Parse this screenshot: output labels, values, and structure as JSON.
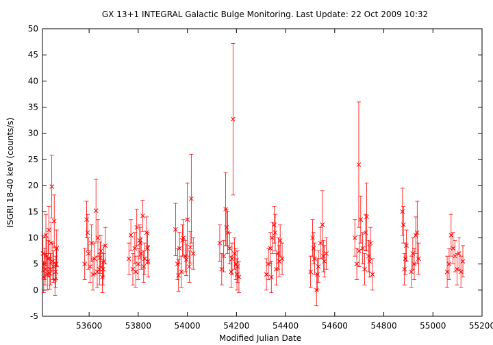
{
  "chart_data": {
    "type": "scatter",
    "title": "GX 13+1   INTEGRAL Galactic Bulge Monitoring.  Last Update: 22 Oct 2009 10:32",
    "xlabel": "Modified Julian Date",
    "ylabel": "ISGRI 18-40 keV (counts/s)",
    "xlim": [
      53410,
      55200
    ],
    "ylim": [
      -5,
      50
    ],
    "xticks": [
      "53600",
      "53800",
      "54000",
      "54200",
      "54400",
      "54600",
      "54800",
      "55000",
      "55200"
    ],
    "yticks": [
      "-5",
      "0",
      "5",
      "10",
      "15",
      "20",
      "25",
      "30",
      "35",
      "40",
      "45",
      "50"
    ],
    "grid": false,
    "legend": "none",
    "marker": "cross (x) with vertical error bars",
    "color": "#ff0000",
    "series": [
      {
        "x": [
          53412,
          53418,
          53424,
          53430,
          53436,
          53442,
          53448,
          53452,
          53458,
          53464,
          53468,
          53415,
          53427,
          53445,
          53455,
          53461,
          53421,
          53433,
          53440,
          53466,
          53582,
          53590,
          53597,
          53604,
          53610,
          53616,
          53622,
          53628,
          53636,
          53642,
          53648,
          53654,
          53660,
          53666,
          53594,
          53633,
          53645,
          53657,
          53762,
          53770,
          53778,
          53786,
          53794,
          53800,
          53806,
          53812,
          53818,
          53826,
          53834,
          53840,
          53790,
          53808,
          53822,
          53838,
          53952,
          53960,
          53968,
          53976,
          53984,
          53992,
          54000,
          54008,
          54016,
          54024,
          53964,
          53980,
          53996,
          54012,
          54132,
          54140,
          54148,
          54156,
          54164,
          54172,
          54178,
          54186,
          54192,
          54198,
          54204,
          54210,
          54160,
          54182,
          54202,
          54322,
          54330,
          54338,
          54346,
          54354,
          54362,
          54370,
          54378,
          54386,
          54342,
          54358,
          54374,
          54502,
          54510,
          54518,
          54526,
          54534,
          54542,
          54550,
          54558,
          54566,
          54514,
          54530,
          54554,
          54682,
          54690,
          54698,
          54706,
          54714,
          54722,
          54730,
          54738,
          54746,
          54754,
          54700,
          54726,
          54742,
          54876,
          54880,
          54884,
          54888,
          54892,
          54912,
          54918,
          54924,
          54930,
          54936,
          54942,
          55058,
          55066,
          55074,
          55082,
          55090,
          55098,
          55106,
          55114,
          55122
        ],
        "y": [
          7.0,
          5.0,
          10.5,
          3.0,
          11.5,
          4.0,
          19.8,
          5.5,
          13.2,
          3.5,
          8.0,
          2.5,
          6.5,
          9.0,
          4.5,
          2.0,
          4.0,
          6.0,
          3.2,
          5.0,
          5.0,
          13.5,
          7.0,
          4.5,
          9.0,
          3.0,
          6.0,
          15.2,
          10.0,
          4.0,
          7.5,
          2.5,
          5.5,
          8.5,
          11.0,
          3.5,
          6.2,
          4.0,
          6.0,
          10.5,
          4.0,
          8.0,
          12.0,
          5.0,
          9.5,
          7.0,
          14.2,
          6.0,
          11.0,
          5.5,
          3.5,
          9.0,
          4.5,
          8.0,
          11.6,
          5.0,
          8.0,
          3.5,
          10.0,
          6.5,
          13.5,
          4.5,
          17.5,
          7.0,
          2.8,
          9.5,
          5.8,
          8.2,
          9.0,
          4.0,
          6.5,
          15.5,
          11.0,
          8.0,
          3.5,
          32.7,
          7.0,
          5.0,
          4.5,
          2.5,
          12.0,
          6.0,
          3.0,
          3.0,
          5.0,
          8.0,
          10.0,
          12.5,
          4.0,
          7.0,
          9.5,
          6.0,
          2.5,
          11.0,
          5.5,
          3.5,
          10.0,
          6.0,
          0.0,
          4.5,
          9.0,
          12.5,
          5.5,
          7.0,
          8.0,
          3.0,
          6.5,
          10.0,
          5.0,
          24.0,
          13.5,
          8.0,
          4.0,
          14.0,
          6.5,
          9.0,
          3.0,
          7.5,
          11.0,
          5.5,
          15.0,
          12.5,
          4.0,
          6.0,
          8.5,
          3.5,
          7.0,
          5.0,
          10.5,
          11.0,
          6.0,
          3.5,
          5.0,
          10.5,
          8.0,
          6.5,
          4.0,
          7.0,
          3.5,
          5.5
        ],
        "yerr": [
          3.5,
          3.0,
          4.0,
          3.0,
          4.5,
          3.0,
          6.0,
          3.5,
          5.0,
          3.0,
          3.5,
          3.0,
          3.5,
          4.0,
          3.0,
          3.0,
          3.0,
          3.5,
          3.0,
          3.0,
          3.0,
          3.5,
          3.0,
          3.0,
          3.5,
          3.0,
          3.0,
          6.0,
          3.5,
          3.0,
          3.0,
          3.0,
          3.0,
          3.5,
          3.5,
          3.0,
          3.0,
          3.0,
          3.0,
          3.0,
          3.0,
          3.0,
          3.5,
          3.0,
          3.0,
          3.0,
          3.0,
          3.0,
          3.0,
          3.0,
          3.0,
          3.0,
          3.0,
          3.0,
          5.0,
          3.0,
          3.0,
          3.0,
          3.5,
          3.0,
          7.0,
          3.0,
          8.5,
          3.0,
          3.0,
          3.0,
          3.0,
          3.0,
          3.5,
          3.0,
          3.0,
          7.0,
          4.0,
          3.0,
          3.0,
          14.5,
          3.0,
          3.0,
          3.0,
          3.0,
          3.5,
          3.0,
          3.0,
          3.0,
          3.0,
          3.0,
          3.0,
          3.5,
          3.0,
          3.0,
          3.0,
          3.0,
          3.0,
          3.5,
          3.0,
          3.0,
          3.5,
          3.0,
          3.0,
          3.0,
          3.0,
          6.5,
          3.0,
          3.0,
          3.0,
          3.0,
          3.0,
          3.5,
          3.0,
          12.0,
          4.5,
          3.0,
          3.0,
          6.5,
          3.0,
          3.0,
          3.0,
          3.0,
          3.5,
          3.0,
          4.5,
          3.5,
          3.0,
          3.0,
          3.0,
          3.0,
          3.0,
          3.0,
          3.5,
          6.0,
          3.0,
          3.0,
          3.0,
          4.0,
          3.0,
          3.0,
          3.0,
          3.0,
          3.0,
          3.0
        ]
      }
    ]
  }
}
